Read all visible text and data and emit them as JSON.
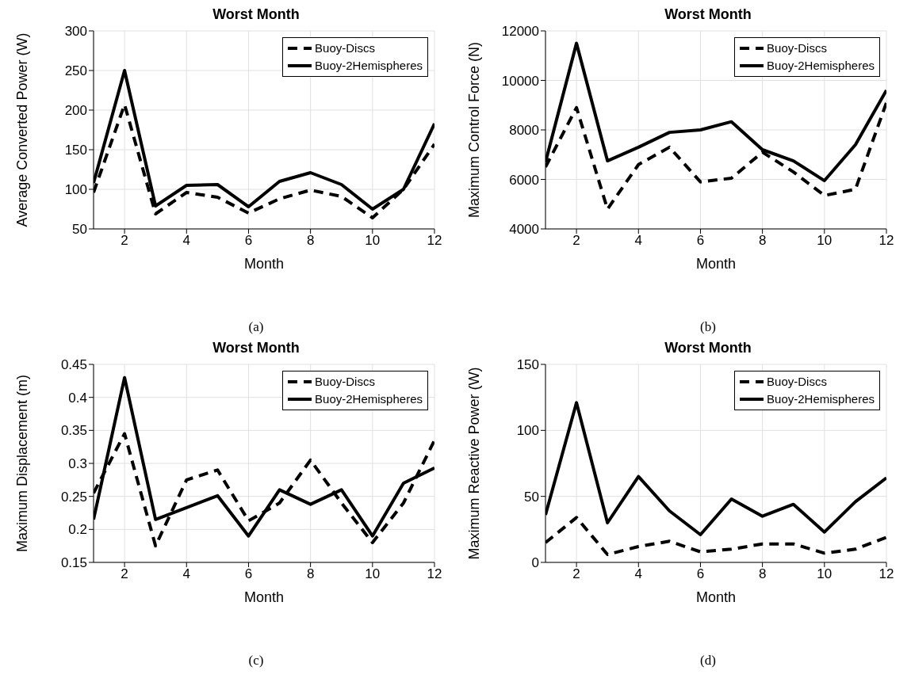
{
  "chart_data": [
    {
      "type": "line",
      "title": "Worst Month",
      "xlabel": "Month",
      "ylabel": "Average Converted Power (W)",
      "x": [
        1,
        2,
        3,
        4,
        5,
        6,
        7,
        8,
        9,
        10,
        11,
        12
      ],
      "xlim": [
        1,
        12
      ],
      "xticks": [
        2,
        4,
        6,
        8,
        10,
        12
      ],
      "ylim": [
        50,
        300
      ],
      "yticks": [
        50,
        100,
        150,
        200,
        250,
        300
      ],
      "grid": true,
      "legend": "top right",
      "annotations": [
        "(a)"
      ],
      "series": [
        {
          "name": "Buoy-Discs",
          "color": "#000000",
          "line_style": "dashed",
          "values": [
            96,
            207,
            69,
            96,
            90,
            70,
            88,
            99,
            91,
            64,
            100,
            157
          ]
        },
        {
          "name": "Buoy-2Hemispheres",
          "color": "#000000",
          "line_style": "solid",
          "values": [
            108,
            250,
            79,
            105,
            106,
            78,
            110,
            121,
            106,
            75,
            100,
            183
          ]
        }
      ]
    },
    {
      "type": "line",
      "title": "Worst Month",
      "xlabel": "Month",
      "ylabel": "Maximum Control Force (N)",
      "x": [
        1,
        2,
        3,
        4,
        5,
        6,
        7,
        8,
        9,
        10,
        11,
        12
      ],
      "xlim": [
        1,
        12
      ],
      "xticks": [
        2,
        4,
        6,
        8,
        10,
        12
      ],
      "ylim": [
        4000,
        12000
      ],
      "yticks": [
        4000,
        6000,
        8000,
        10000,
        12000
      ],
      "grid": true,
      "legend": "top right",
      "annotations": [
        "(b)"
      ],
      "series": [
        {
          "name": "Buoy-Discs",
          "color": "#000000",
          "line_style": "dashed",
          "values": [
            6500,
            8900,
            4800,
            6600,
            7300,
            5900,
            6050,
            7100,
            6300,
            5350,
            5600,
            9100
          ]
        },
        {
          "name": "Buoy-2Hemispheres",
          "color": "#000000",
          "line_style": "solid",
          "values": [
            6700,
            11500,
            6750,
            7300,
            7900,
            8000,
            8330,
            7200,
            6750,
            5950,
            7400,
            9600
          ]
        }
      ]
    },
    {
      "type": "line",
      "title": "Worst Month",
      "xlabel": "Month",
      "ylabel": "Maximum Displacement (m)",
      "x": [
        1,
        2,
        3,
        4,
        5,
        6,
        7,
        8,
        9,
        10,
        11,
        12
      ],
      "xlim": [
        1,
        12
      ],
      "xticks": [
        2,
        4,
        6,
        8,
        10,
        12
      ],
      "ylim": [
        0.15,
        0.45
      ],
      "yticks": [
        0.15,
        0.2,
        0.25,
        0.3,
        0.35,
        0.4,
        0.45
      ],
      "grid": true,
      "legend": "top right",
      "annotations": [
        "(c)"
      ],
      "series": [
        {
          "name": "Buoy-Discs",
          "color": "#000000",
          "line_style": "dashed",
          "values": [
            0.255,
            0.345,
            0.175,
            0.275,
            0.29,
            0.213,
            0.24,
            0.305,
            0.24,
            0.18,
            0.24,
            0.335
          ]
        },
        {
          "name": "Buoy-2Hemispheres",
          "color": "#000000",
          "line_style": "solid",
          "values": [
            0.215,
            0.43,
            0.215,
            0.233,
            0.251,
            0.19,
            0.26,
            0.238,
            0.26,
            0.19,
            0.27,
            0.293
          ]
        }
      ]
    },
    {
      "type": "line",
      "title": "Worst Month",
      "xlabel": "Month",
      "ylabel": "Maximum Reactive Power (W)",
      "x": [
        1,
        2,
        3,
        4,
        5,
        6,
        7,
        8,
        9,
        10,
        11,
        12
      ],
      "xlim": [
        1,
        12
      ],
      "xticks": [
        2,
        4,
        6,
        8,
        10,
        12
      ],
      "ylim": [
        0,
        150
      ],
      "yticks": [
        0,
        50,
        100,
        150
      ],
      "grid": true,
      "legend": "top right",
      "annotations": [
        "(d)"
      ],
      "series": [
        {
          "name": "Buoy-Discs",
          "color": "#000000",
          "line_style": "dashed",
          "values": [
            15,
            34,
            6,
            12,
            16,
            8,
            10,
            14,
            14,
            7,
            10,
            19
          ]
        },
        {
          "name": "Buoy-2Hemispheres",
          "color": "#000000",
          "line_style": "solid",
          "values": [
            36,
            121,
            30,
            65,
            39,
            21,
            48,
            35,
            44,
            23,
            46,
            64
          ]
        }
      ]
    }
  ]
}
